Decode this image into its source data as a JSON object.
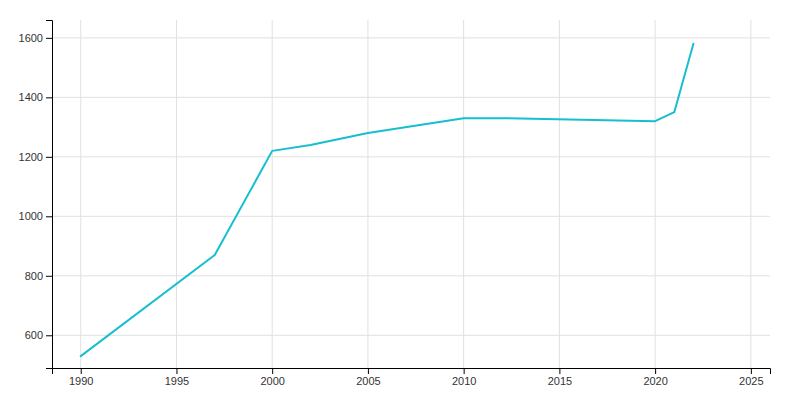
{
  "chart_data": {
    "type": "line",
    "x": [
      1990,
      1997,
      2000,
      2002,
      2005,
      2010,
      2012,
      2020,
      2021,
      2022
    ],
    "values": [
      530,
      870,
      1220,
      1240,
      1280,
      1330,
      1330,
      1320,
      1350,
      1580
    ],
    "color": "#17becf",
    "xlim": [
      1988.5,
      2026
    ],
    "ylim": [
      490,
      1660
    ],
    "xticks": [
      1990,
      1995,
      2000,
      2005,
      2010,
      2015,
      2020,
      2025
    ],
    "yticks": [
      600,
      800,
      1000,
      1200,
      1400,
      1600
    ],
    "grid": true
  }
}
